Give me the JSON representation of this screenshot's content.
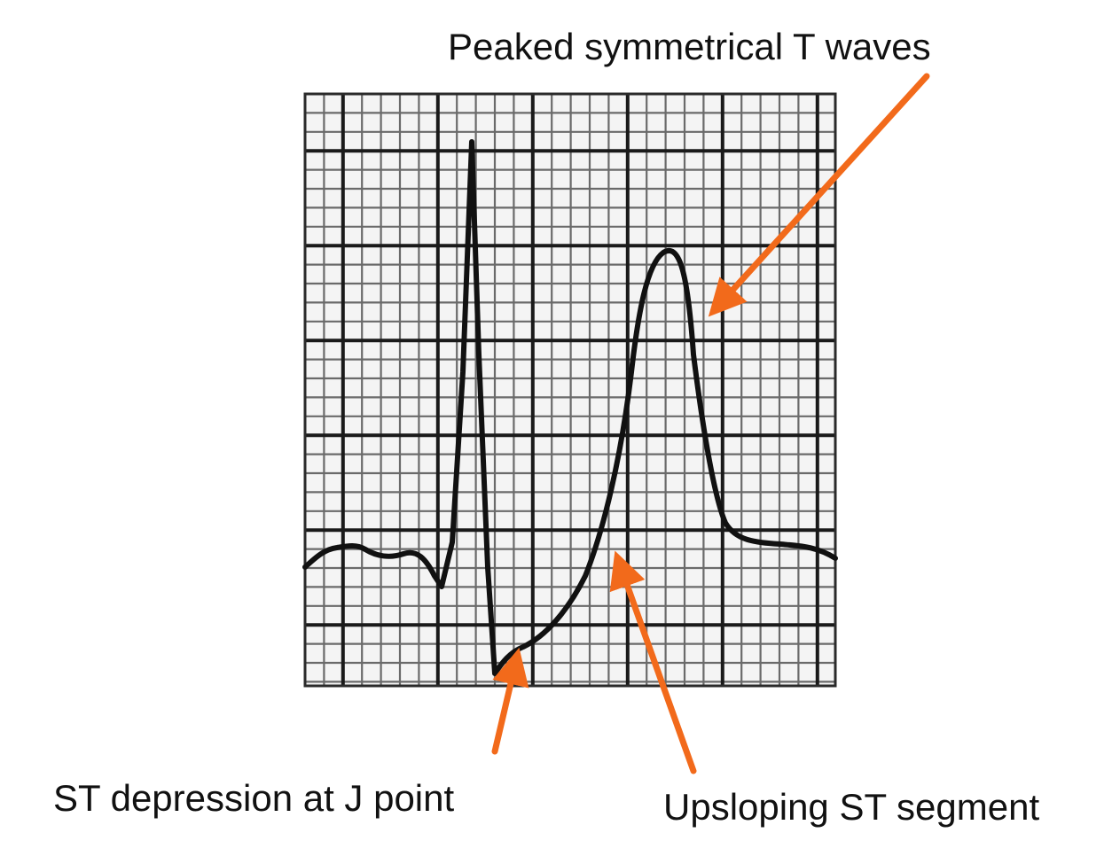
{
  "annotations": {
    "t_waves": "Peaked symmetrical T waves",
    "j_point": "ST depression at J point",
    "st_segment": "Upsloping ST segment"
  },
  "colors": {
    "arrow": "#f26a1b",
    "trace": "#111111",
    "grid_major": "#1a1a1a",
    "grid_minor": "#6a6a6a",
    "paper": "#f4f4f4"
  }
}
